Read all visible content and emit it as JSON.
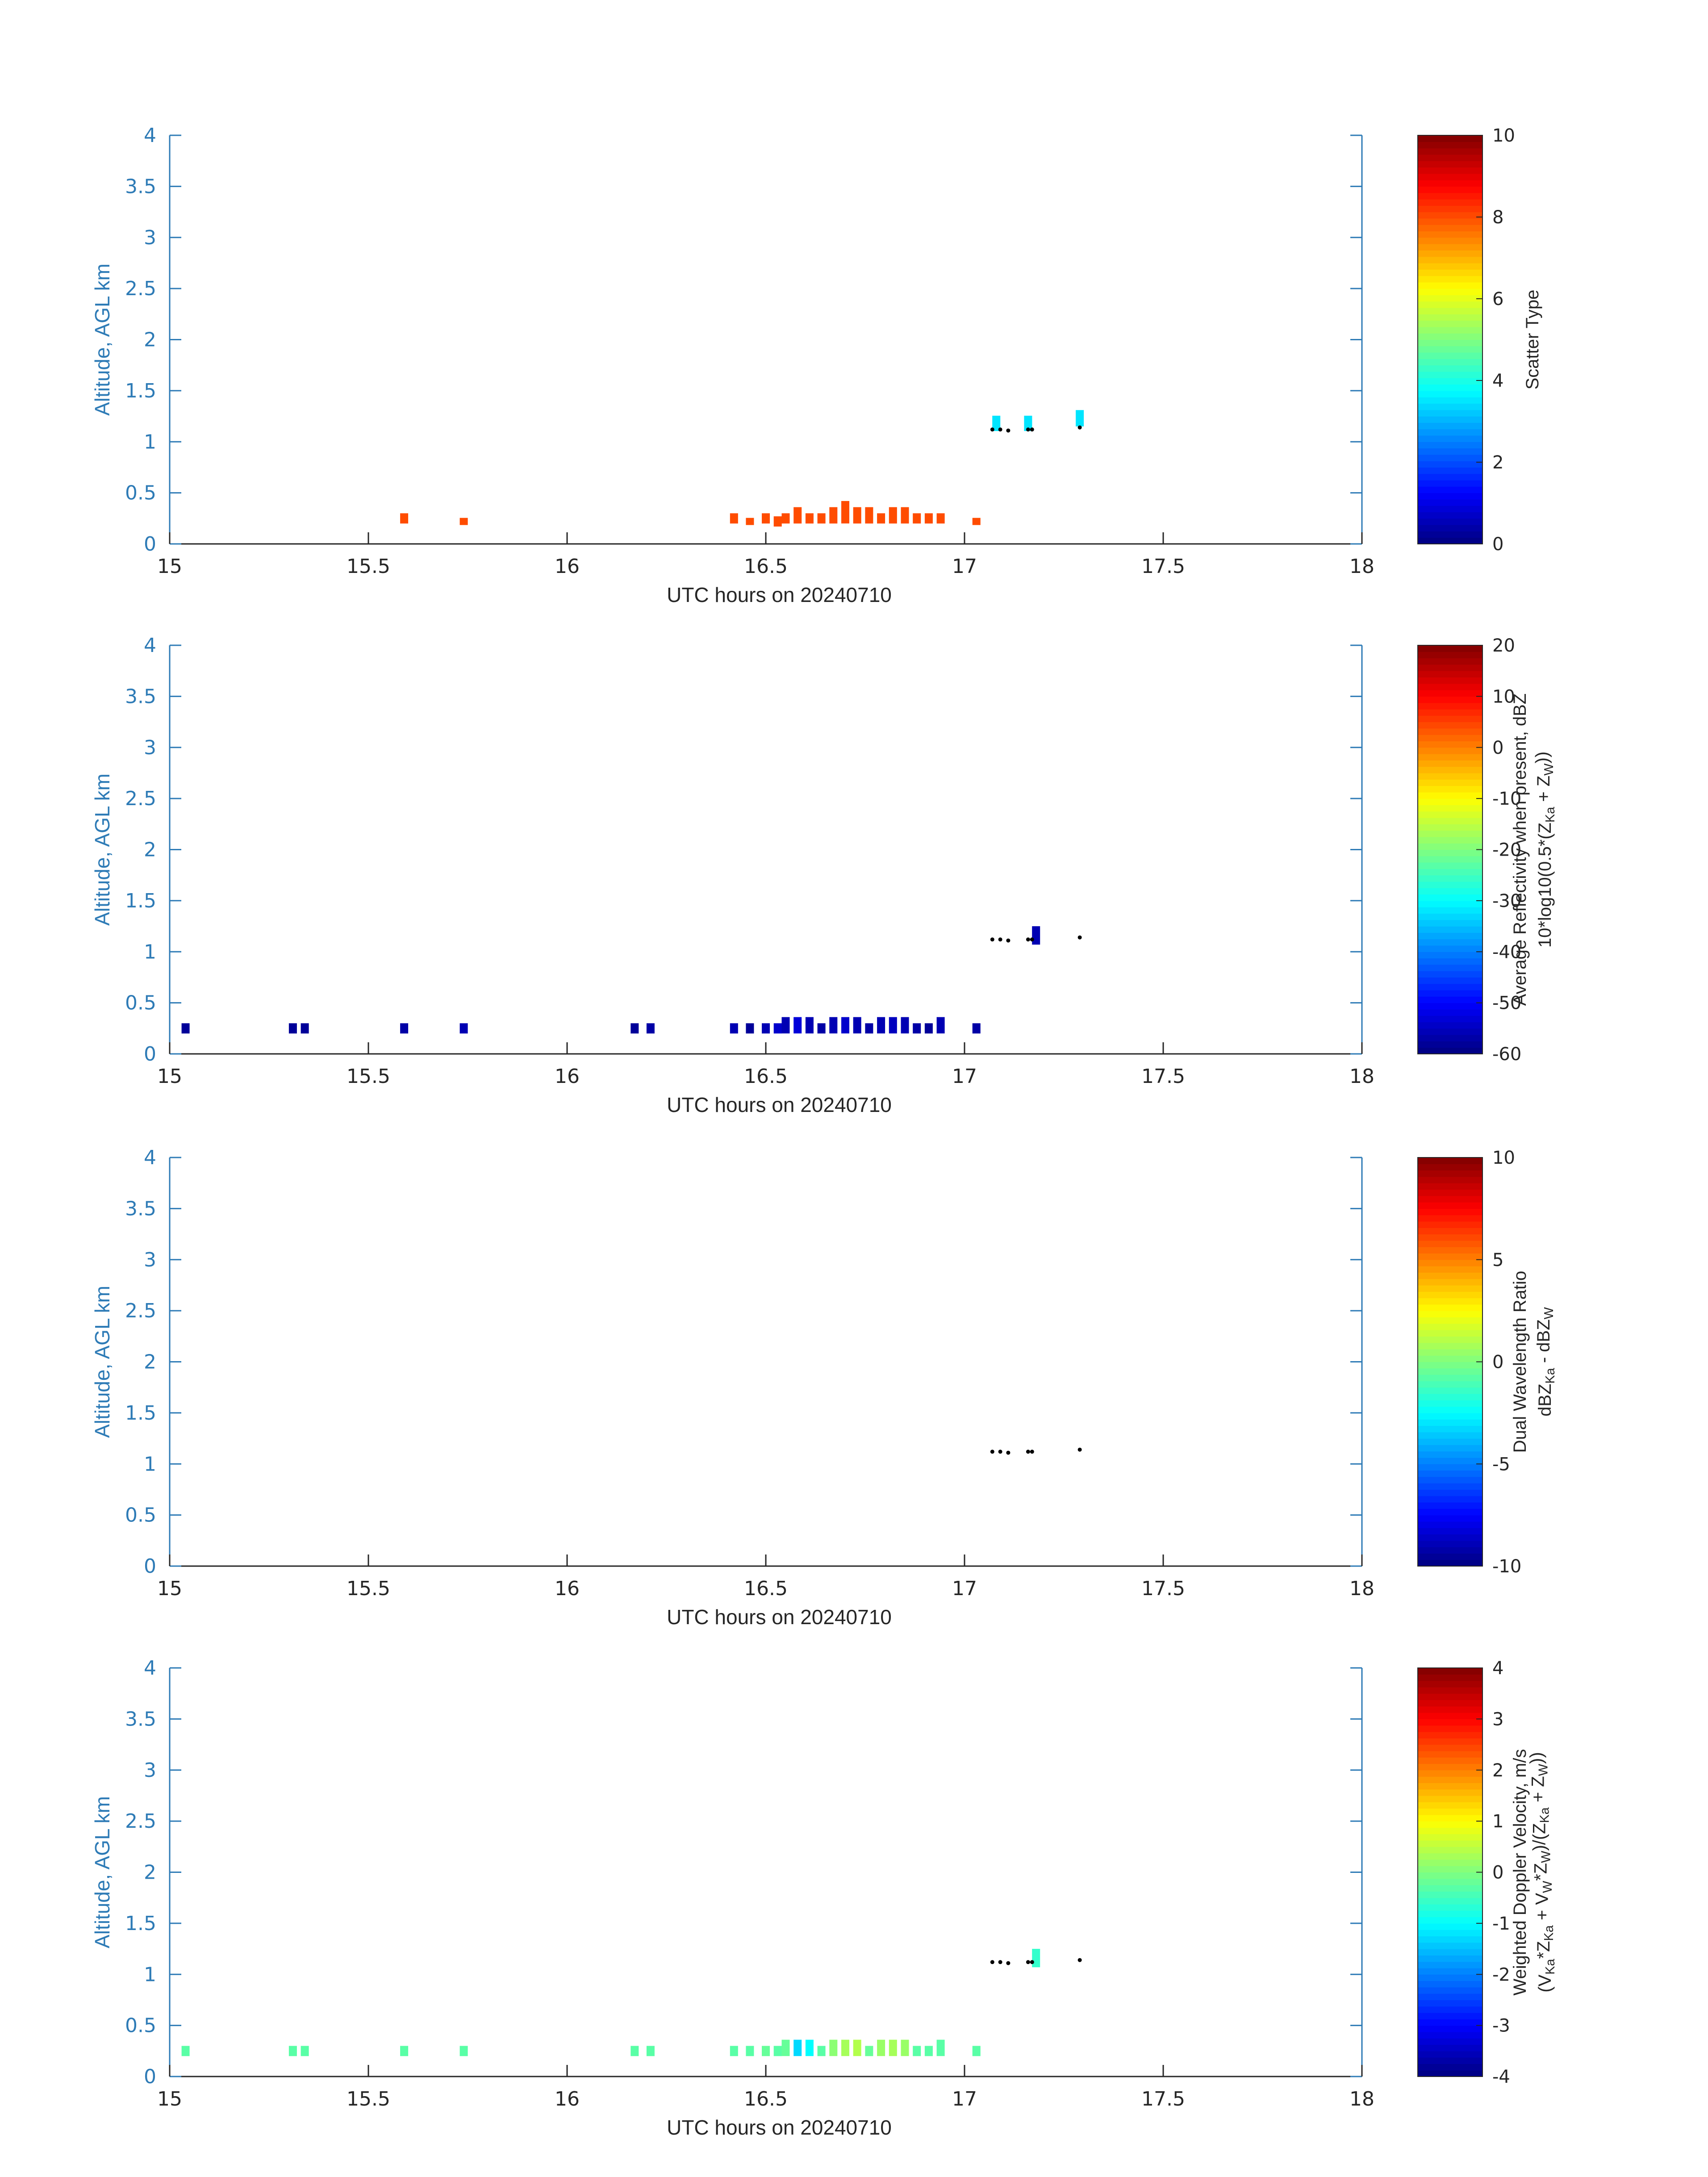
{
  "colors": {
    "axis": "#2E7BB6",
    "text": "#262626",
    "marker": "#000000"
  },
  "colormap": "jet",
  "chart_data": [
    {
      "type": "heatmap",
      "xlabel": "UTC hours on 20240710",
      "ylabel": "Altitude, AGL km",
      "xlim": [
        15,
        18
      ],
      "ylim": [
        0,
        4
      ],
      "xticks": [
        "15",
        "15.5",
        "16",
        "16.5",
        "17",
        "17.5",
        "18"
      ],
      "yticks": [
        "0",
        "0.5",
        "1",
        "1.5",
        "2",
        "2.5",
        "3",
        "3.5",
        "4"
      ],
      "colorbar": {
        "label": [
          "Scatter Type"
        ],
        "lim": [
          0,
          10
        ],
        "ticks": [
          "0",
          "2",
          "4",
          "6",
          "8",
          "10"
        ]
      },
      "cells": [
        [
          15.59,
          0.25,
          0.1,
          8
        ],
        [
          15.74,
          0.22,
          0.07,
          8
        ],
        [
          16.42,
          0.25,
          0.1,
          8
        ],
        [
          16.46,
          0.22,
          0.07,
          8
        ],
        [
          16.5,
          0.25,
          0.1,
          8
        ],
        [
          16.53,
          0.22,
          0.1,
          8
        ],
        [
          16.55,
          0.25,
          0.1,
          8
        ],
        [
          16.58,
          0.28,
          0.16,
          8
        ],
        [
          16.61,
          0.25,
          0.1,
          8
        ],
        [
          16.64,
          0.25,
          0.1,
          8
        ],
        [
          16.67,
          0.28,
          0.16,
          8
        ],
        [
          16.7,
          0.31,
          0.22,
          8
        ],
        [
          16.73,
          0.28,
          0.16,
          8
        ],
        [
          16.76,
          0.28,
          0.16,
          8
        ],
        [
          16.79,
          0.25,
          0.1,
          8
        ],
        [
          16.82,
          0.28,
          0.16,
          8
        ],
        [
          16.85,
          0.28,
          0.16,
          8
        ],
        [
          16.88,
          0.25,
          0.1,
          8
        ],
        [
          16.91,
          0.25,
          0.1,
          8
        ],
        [
          16.94,
          0.25,
          0.1,
          8
        ],
        [
          17.03,
          0.22,
          0.07,
          8
        ],
        [
          17.08,
          1.18,
          0.15,
          3.5
        ],
        [
          17.16,
          1.18,
          0.15,
          3.5
        ],
        [
          17.29,
          1.23,
          0.16,
          3.5
        ]
      ],
      "markers": [
        [
          17.07,
          1.12
        ],
        [
          17.09,
          1.12
        ],
        [
          17.11,
          1.11
        ],
        [
          17.16,
          1.12
        ],
        [
          17.17,
          1.12
        ],
        [
          17.29,
          1.14
        ]
      ]
    },
    {
      "type": "heatmap",
      "xlabel": "UTC hours on 20240710",
      "ylabel": "Altitude, AGL km",
      "xlim": [
        15,
        18
      ],
      "ylim": [
        0,
        4
      ],
      "xticks": [
        "15",
        "15.5",
        "16",
        "16.5",
        "17",
        "17.5",
        "18"
      ],
      "yticks": [
        "0",
        "0.5",
        "1",
        "1.5",
        "2",
        "2.5",
        "3",
        "3.5",
        "4"
      ],
      "colorbar": {
        "label": [
          "Average Reflectivity when present, dBZ",
          "10*log10(0.5*(Z_Ka + Z_W))"
        ],
        "lim": [
          -60,
          20
        ],
        "ticks": [
          "-60",
          "-50",
          "-40",
          "-30",
          "-20",
          "-10",
          "0",
          "10",
          "20"
        ]
      },
      "cells": [
        [
          15.04,
          0.25,
          0.1,
          -58
        ],
        [
          15.31,
          0.25,
          0.1,
          -58
        ],
        [
          15.34,
          0.25,
          0.1,
          -58
        ],
        [
          15.59,
          0.25,
          0.1,
          -57
        ],
        [
          15.74,
          0.25,
          0.1,
          -56
        ],
        [
          16.17,
          0.25,
          0.1,
          -58
        ],
        [
          16.21,
          0.25,
          0.1,
          -57
        ],
        [
          16.42,
          0.25,
          0.1,
          -56
        ],
        [
          16.46,
          0.25,
          0.1,
          -58
        ],
        [
          16.5,
          0.25,
          0.1,
          -56
        ],
        [
          16.53,
          0.25,
          0.1,
          -54
        ],
        [
          16.55,
          0.28,
          0.16,
          -56
        ],
        [
          16.58,
          0.28,
          0.16,
          -53
        ],
        [
          16.61,
          0.28,
          0.16,
          -56
        ],
        [
          16.64,
          0.25,
          0.1,
          -57
        ],
        [
          16.67,
          0.28,
          0.16,
          -56
        ],
        [
          16.7,
          0.28,
          0.16,
          -54
        ],
        [
          16.73,
          0.28,
          0.16,
          -56
        ],
        [
          16.76,
          0.25,
          0.1,
          -57
        ],
        [
          16.79,
          0.28,
          0.16,
          -56
        ],
        [
          16.82,
          0.28,
          0.16,
          -55
        ],
        [
          16.85,
          0.28,
          0.16,
          -56
        ],
        [
          16.88,
          0.25,
          0.1,
          -57
        ],
        [
          16.91,
          0.25,
          0.1,
          -58
        ],
        [
          16.94,
          0.28,
          0.16,
          -56
        ],
        [
          17.03,
          0.25,
          0.1,
          -57
        ],
        [
          17.18,
          1.16,
          0.18,
          -56
        ]
      ],
      "markers": [
        [
          17.07,
          1.12
        ],
        [
          17.09,
          1.12
        ],
        [
          17.11,
          1.11
        ],
        [
          17.16,
          1.12
        ],
        [
          17.17,
          1.12
        ],
        [
          17.29,
          1.14
        ]
      ]
    },
    {
      "type": "heatmap",
      "xlabel": "UTC hours on 20240710",
      "ylabel": "Altitude, AGL km",
      "xlim": [
        15,
        18
      ],
      "ylim": [
        0,
        4
      ],
      "xticks": [
        "15",
        "15.5",
        "16",
        "16.5",
        "17",
        "17.5",
        "18"
      ],
      "yticks": [
        "0",
        "0.5",
        "1",
        "1.5",
        "2",
        "2.5",
        "3",
        "3.5",
        "4"
      ],
      "colorbar": {
        "label": [
          "Dual Wavelength Ratio",
          "dBZ_Ka - dBZ_W"
        ],
        "lim": [
          -10,
          10
        ],
        "ticks": [
          "-10",
          "-5",
          "0",
          "5",
          "10"
        ]
      },
      "cells": [],
      "markers": [
        [
          17.07,
          1.12
        ],
        [
          17.09,
          1.12
        ],
        [
          17.11,
          1.11
        ],
        [
          17.16,
          1.12
        ],
        [
          17.17,
          1.12
        ],
        [
          17.29,
          1.14
        ]
      ]
    },
    {
      "type": "heatmap",
      "xlabel": "UTC hours on 20240710",
      "ylabel": "Altitude, AGL km",
      "xlim": [
        15,
        18
      ],
      "ylim": [
        0,
        4
      ],
      "xticks": [
        "15",
        "15.5",
        "16",
        "16.5",
        "17",
        "17.5",
        "18"
      ],
      "yticks": [
        "0",
        "0.5",
        "1",
        "1.5",
        "2",
        "2.5",
        "3",
        "3.5",
        "4"
      ],
      "colorbar": {
        "label": [
          "Weighted Doppler Velocity, m/s",
          "(V_Ka*Z_Ka + V_W*Z_W)/(Z_Ka + Z_W))"
        ],
        "lim": [
          -4,
          4
        ],
        "ticks": [
          "-4",
          "-3",
          "-2",
          "-1",
          "0",
          "1",
          "2",
          "3",
          "4"
        ]
      },
      "cells": [
        [
          15.04,
          0.25,
          0.1,
          -0.3
        ],
        [
          15.31,
          0.25,
          0.1,
          -0.3
        ],
        [
          15.34,
          0.25,
          0.1,
          -0.3
        ],
        [
          15.59,
          0.25,
          0.1,
          -0.3
        ],
        [
          15.74,
          0.25,
          0.1,
          -0.3
        ],
        [
          16.17,
          0.25,
          0.1,
          -0.3
        ],
        [
          16.21,
          0.25,
          0.1,
          -0.3
        ],
        [
          16.42,
          0.25,
          0.1,
          -0.3
        ],
        [
          16.46,
          0.25,
          0.1,
          -0.3
        ],
        [
          16.5,
          0.25,
          0.1,
          -0.2
        ],
        [
          16.53,
          0.25,
          0.1,
          -0.3
        ],
        [
          16.55,
          0.28,
          0.16,
          -0.2
        ],
        [
          16.58,
          0.28,
          0.16,
          -1.3
        ],
        [
          16.61,
          0.28,
          0.16,
          -1.0
        ],
        [
          16.64,
          0.25,
          0.1,
          -0.3
        ],
        [
          16.67,
          0.28,
          0.16,
          0.1
        ],
        [
          16.7,
          0.28,
          0.16,
          0.3
        ],
        [
          16.73,
          0.28,
          0.16,
          0.4
        ],
        [
          16.76,
          0.25,
          0.1,
          -0.2
        ],
        [
          16.79,
          0.28,
          0.16,
          0.2
        ],
        [
          16.82,
          0.28,
          0.16,
          0.3
        ],
        [
          16.85,
          0.28,
          0.16,
          0.2
        ],
        [
          16.88,
          0.25,
          0.1,
          -0.3
        ],
        [
          16.91,
          0.25,
          0.1,
          -0.3
        ],
        [
          16.94,
          0.28,
          0.16,
          -0.3
        ],
        [
          17.03,
          0.25,
          0.1,
          -0.3
        ],
        [
          17.18,
          1.16,
          0.18,
          -0.6
        ]
      ],
      "markers": [
        [
          17.07,
          1.12
        ],
        [
          17.09,
          1.12
        ],
        [
          17.11,
          1.11
        ],
        [
          17.16,
          1.12
        ],
        [
          17.17,
          1.12
        ],
        [
          17.29,
          1.14
        ]
      ]
    }
  ]
}
